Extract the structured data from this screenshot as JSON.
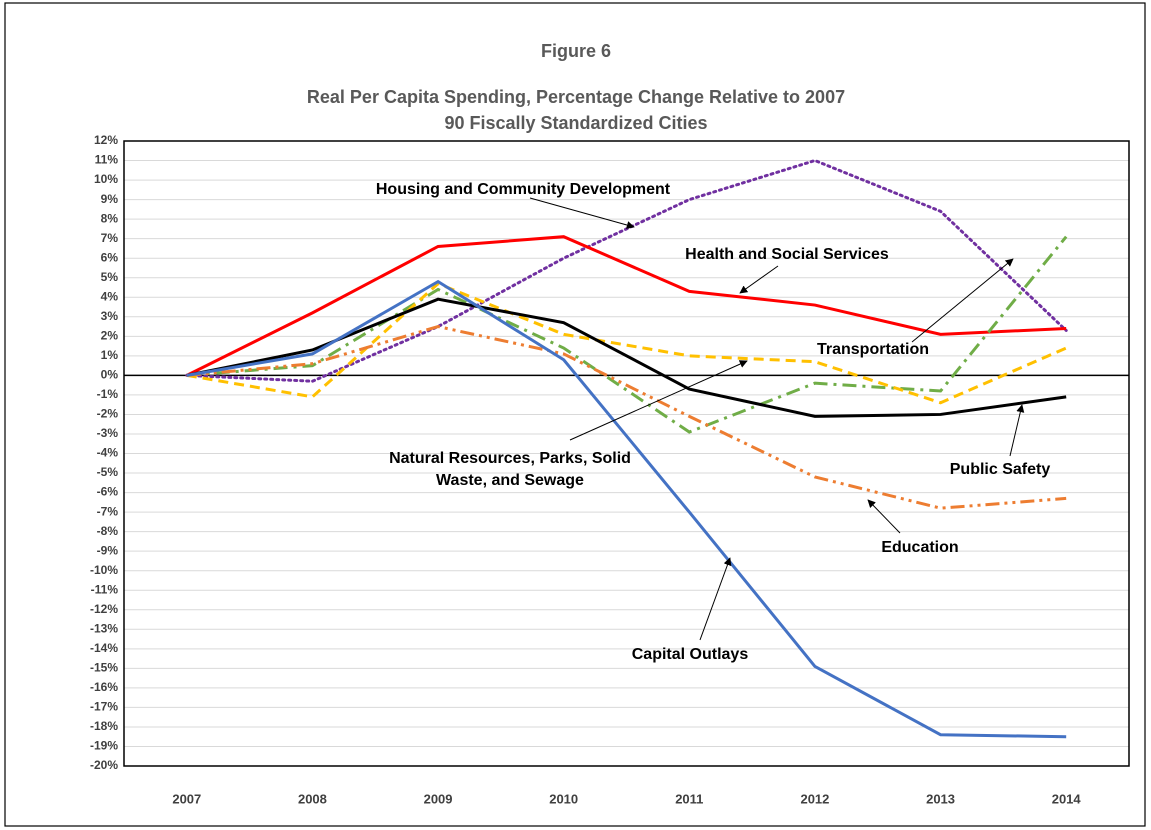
{
  "chart_data": {
    "type": "line",
    "title": "Figure 6",
    "subtitle": [
      "Real Per Capita Spending, Percentage Change Relative to 2007",
      "90 Fiscally Standardized Cities"
    ],
    "categories": [
      "2007",
      "2008",
      "2009",
      "2010",
      "2011",
      "2012",
      "2013",
      "2014"
    ],
    "series": [
      {
        "name": "Housing and Community Development",
        "color": "#7030a0",
        "style": "dotted",
        "values": [
          0,
          -0.3,
          2.5,
          6.0,
          9.0,
          11.0,
          8.4,
          2.3
        ]
      },
      {
        "name": "Health and Social Services",
        "color": "#ff0000",
        "style": "solid",
        "values": [
          0,
          3.2,
          6.6,
          7.1,
          4.3,
          3.6,
          2.1,
          2.4
        ]
      },
      {
        "name": "Transportation",
        "color": "#70ad47",
        "style": "dashdot",
        "values": [
          0,
          0.5,
          4.4,
          1.4,
          -2.9,
          -0.4,
          -0.8,
          7.1
        ]
      },
      {
        "name": "Natural Resources, Parks, Solid Waste, and Sewage",
        "color": "#ffc000",
        "style": "dashed",
        "values": [
          0,
          -1.1,
          4.7,
          2.1,
          1.0,
          0.7,
          -1.4,
          1.4
        ]
      },
      {
        "name": "Public Safety",
        "color": "#000000",
        "style": "solid",
        "values": [
          0,
          1.3,
          3.9,
          2.7,
          -0.7,
          -2.1,
          -2.0,
          -1.1
        ]
      },
      {
        "name": "Education",
        "color": "#ed7d31",
        "style": "dashdotdot",
        "values": [
          0,
          0.6,
          2.5,
          1.1,
          -2.1,
          -5.2,
          -6.8,
          -6.3
        ]
      },
      {
        "name": "Capital Outlays",
        "color": "#4472c4",
        "style": "solid",
        "values": [
          0,
          1.1,
          4.8,
          0.8,
          -7.0,
          -14.9,
          -18.4,
          -18.5
        ]
      }
    ],
    "ylim": [
      -20,
      12
    ],
    "yticks": [
      {
        "value": 12,
        "label": "12%"
      },
      {
        "value": 11,
        "label": "11%"
      },
      {
        "value": 10,
        "label": "10%"
      },
      {
        "value": 9,
        "label": "9%"
      },
      {
        "value": 8,
        "label": "8%"
      },
      {
        "value": 7,
        "label": "7%"
      },
      {
        "value": 6,
        "label": "6%"
      },
      {
        "value": 5,
        "label": "5%"
      },
      {
        "value": 4,
        "label": "4%"
      },
      {
        "value": 3,
        "label": "3%"
      },
      {
        "value": 2,
        "label": "2%"
      },
      {
        "value": 1,
        "label": "1%"
      },
      {
        "value": 0,
        "label": "0%"
      },
      {
        "value": -1,
        "label": "-1%"
      },
      {
        "value": -2,
        "label": "-2%"
      },
      {
        "value": -3,
        "label": "-3%"
      },
      {
        "value": -4,
        "label": "-4%"
      },
      {
        "value": -5,
        "label": "-5%"
      },
      {
        "value": -6,
        "label": "-6%"
      },
      {
        "value": -7,
        "label": "-7%"
      },
      {
        "value": -8,
        "label": "-8%"
      },
      {
        "value": -9,
        "label": "-9%"
      },
      {
        "value": -10,
        "label": "-10%"
      },
      {
        "value": -11,
        "label": "-11%"
      },
      {
        "value": -12,
        "label": "-12%"
      },
      {
        "value": -13,
        "label": "-13%"
      },
      {
        "value": -14,
        "label": "-14%"
      },
      {
        "value": -15,
        "label": "-15%"
      },
      {
        "value": -16,
        "label": "-16%"
      },
      {
        "value": -17,
        "label": "-17%"
      },
      {
        "value": -18,
        "label": "-18%"
      },
      {
        "value": -19,
        "label": "-19%"
      },
      {
        "value": -20,
        "label": "-20%"
      }
    ],
    "grid": true
  }
}
